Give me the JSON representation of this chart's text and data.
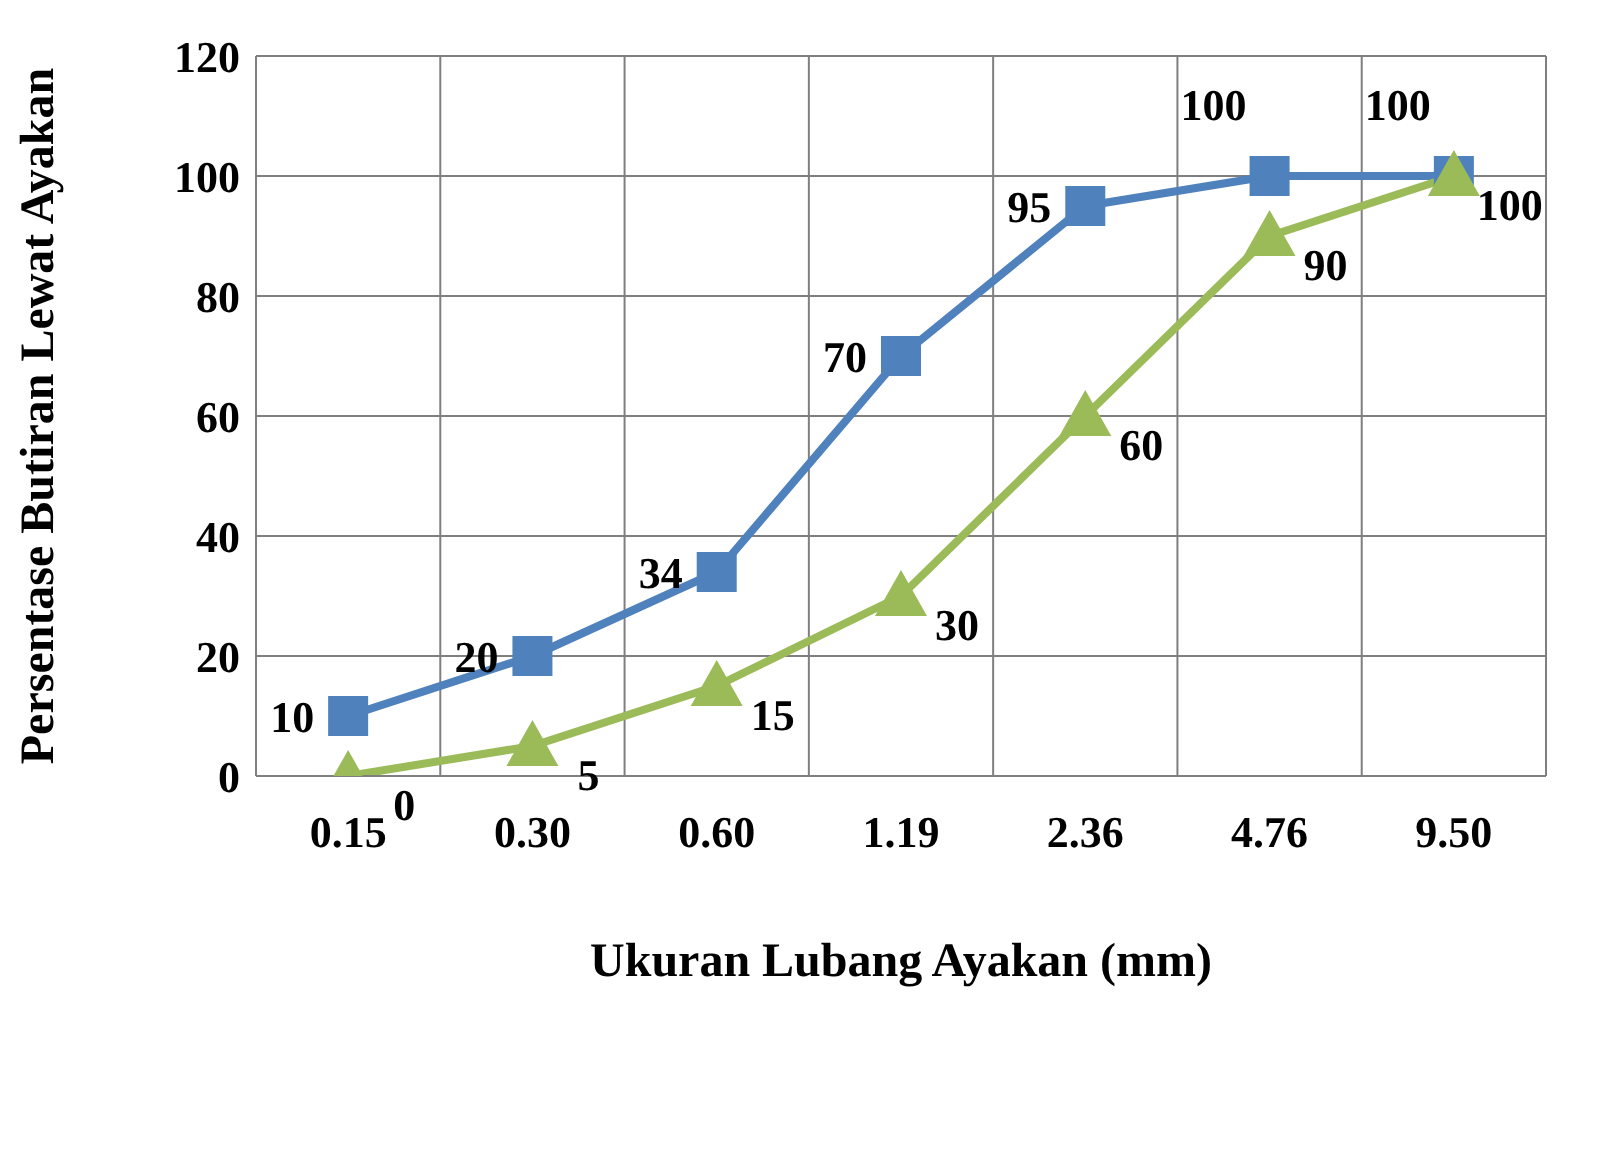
{
  "chart_data": {
    "type": "line",
    "xlabel": "Ukuran Lubang Ayakan (mm)",
    "ylabel": "Persentase Butiran Lewat Ayakan",
    "categories": [
      "0.15",
      "0.30",
      "0.60",
      "1.19",
      "2.36",
      "4.76",
      "9.50"
    ],
    "series": [
      {
        "color": "#4f81bd",
        "marker": "square",
        "values": [
          10,
          20,
          34,
          70,
          95,
          100,
          100
        ]
      },
      {
        "color": "#9bbb59",
        "marker": "triangle",
        "values": [
          0,
          5,
          15,
          30,
          60,
          90,
          100
        ]
      }
    ],
    "ylim": [
      0,
      120
    ],
    "yticks": [
      0,
      20,
      40,
      60,
      80,
      100,
      120
    ],
    "grid": true,
    "data_labels": true,
    "legend": false
  }
}
